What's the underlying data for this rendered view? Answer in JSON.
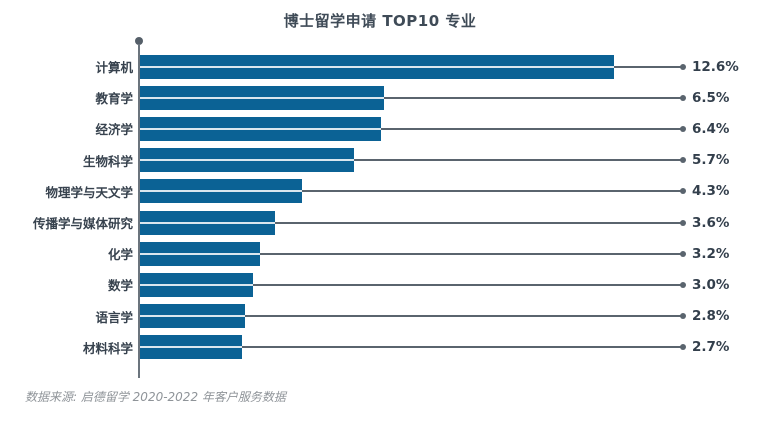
{
  "chart_data": {
    "type": "bar",
    "orientation": "horizontal",
    "title": "博士留学申请 TOP10 专业",
    "categories": [
      "计算机",
      "教育学",
      "经济学",
      "生物科学",
      "物理学与天文学",
      "传播学与媒体研究",
      "化学",
      "数学",
      "语言学",
      "材料科学"
    ],
    "values": [
      12.6,
      6.5,
      6.4,
      5.7,
      4.3,
      3.6,
      3.2,
      3.0,
      2.8,
      2.7
    ],
    "value_labels": [
      "12.6%",
      "6.5%",
      "6.4%",
      "5.7%",
      "4.3%",
      "3.6%",
      "3.2%",
      "3.0%",
      "2.8%",
      "2.7%"
    ],
    "xlim": [
      0,
      13.2
    ],
    "legend": "none",
    "grid": "off",
    "source_note": "数据来源: 启德留学 2020-2022 年客户服务数据",
    "colors": {
      "bar": "#0b6295",
      "leader_line": "#5a646e",
      "axis": "#6b747d",
      "title_text": "#3f4b57",
      "category_text": "#37424e",
      "value_text": "#333f4c",
      "source_text": "#8f9499"
    }
  }
}
